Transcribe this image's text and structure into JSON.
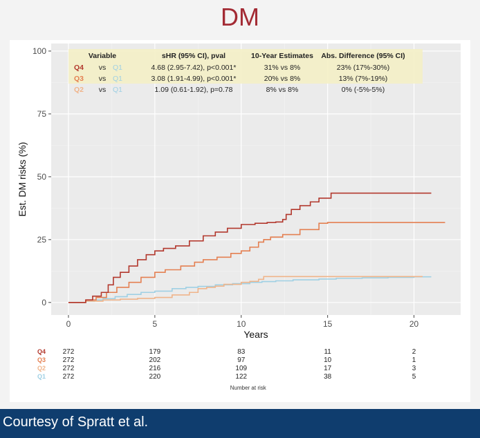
{
  "title": "DM",
  "footer": "Courtesy of Spratt et al.",
  "colors": {
    "title": "#a32b34",
    "Q4": "#b2372c",
    "Q3": "#e47f51",
    "Q2": "#f0b48a",
    "Q1": "#9fd0e4",
    "highlight": "#f4f0c6",
    "footer_bg": "#0f3d6e"
  },
  "table": {
    "headers": [
      "Variable",
      "sHR (95% CI), pval",
      "10-Year Estimates",
      "Abs. Difference (95% CI)"
    ],
    "rows": [
      {
        "group": "Q4",
        "vs": "vs",
        "ref": "Q1",
        "shr": "4.68 (2.95-7.42), p<0.001*",
        "est": "31% vs 8%",
        "diff": "23% (17%-30%)",
        "highlight": true
      },
      {
        "group": "Q3",
        "vs": "vs",
        "ref": "Q1",
        "shr": "3.08 (1.91-4.99), p<0.001*",
        "est": "20% vs 8%",
        "diff": "13% (7%-19%)",
        "highlight": false
      },
      {
        "group": "Q2",
        "vs": "vs",
        "ref": "Q1",
        "shr": "1.09 (0.61-1.92), p=0.78",
        "est": "8% vs 8%",
        "diff": "0% (-5%-5%)",
        "highlight": false
      }
    ]
  },
  "risk_table": {
    "label": "Number at risk",
    "times": [
      0,
      5,
      10,
      15,
      20
    ],
    "rows": [
      {
        "group": "Q4",
        "values": [
          272,
          179,
          83,
          11,
          2
        ]
      },
      {
        "group": "Q3",
        "values": [
          272,
          202,
          97,
          10,
          1
        ]
      },
      {
        "group": "Q2",
        "values": [
          272,
          216,
          109,
          17,
          3
        ]
      },
      {
        "group": "Q1",
        "values": [
          272,
          220,
          122,
          38,
          5
        ]
      }
    ]
  },
  "chart_data": {
    "type": "line",
    "step": true,
    "xlabel": "Years",
    "ylabel": "Est. DM risks (%)",
    "xlim": [
      -1,
      22.7
    ],
    "ylim": [
      -5,
      103
    ],
    "xticks": [
      0,
      5,
      10,
      15,
      20
    ],
    "yticks": [
      0,
      25,
      50,
      75,
      100
    ],
    "grid": true,
    "series": [
      {
        "name": "Q1",
        "color": "#9fd0e4",
        "x": [
          0,
          1,
          1.5,
          2,
          2.7,
          3.4,
          4.2,
          5,
          6,
          6.8,
          7.5,
          8.5,
          9.5,
          10.5,
          11.2,
          12,
          13,
          14.5,
          15.5,
          17,
          18.5,
          20,
          21
        ],
        "y": [
          0,
          0.4,
          1,
          1.5,
          2.3,
          3.2,
          4,
          4.5,
          5.5,
          6,
          6.4,
          7,
          7.5,
          8,
          8.3,
          8.6,
          9,
          9.3,
          9.6,
          9.8,
          10,
          10.2,
          10.2
        ]
      },
      {
        "name": "Q2",
        "color": "#f0b48a",
        "x": [
          0,
          1,
          2,
          3,
          4,
          5,
          6,
          7,
          7.5,
          8,
          8.5,
          9,
          10,
          10.5,
          11,
          11.3,
          14,
          15,
          17,
          19,
          20.5
        ],
        "y": [
          0,
          0.5,
          1,
          1.3,
          1.6,
          2,
          3,
          4,
          5.5,
          6,
          6.5,
          7.2,
          8,
          8.4,
          9.2,
          10.3,
          10.3,
          10.3,
          10.3,
          10.3,
          10.3
        ]
      },
      {
        "name": "Q3",
        "color": "#e47f51",
        "x": [
          0,
          1,
          1.6,
          2.2,
          2.8,
          3.5,
          4.2,
          5,
          5.6,
          6.5,
          7.3,
          7.8,
          8.6,
          9.4,
          10,
          10.5,
          11,
          11.3,
          11.7,
          12.4,
          13.4,
          14.5,
          15,
          15.7,
          16.5,
          18,
          20,
          21.8
        ],
        "y": [
          0,
          1,
          2,
          4,
          6,
          8,
          10,
          12,
          13,
          14.5,
          16,
          17,
          18,
          19.5,
          20.5,
          22,
          24,
          25,
          26,
          27,
          29,
          31.5,
          31.8,
          31.8,
          31.8,
          31.8,
          31.8,
          31.8
        ]
      },
      {
        "name": "Q4",
        "color": "#b2372c",
        "x": [
          0,
          1,
          1.4,
          1.9,
          2.3,
          2.6,
          3,
          3.5,
          4,
          4.5,
          5,
          5.5,
          6.2,
          7,
          7.8,
          8.5,
          9.2,
          10,
          10.8,
          11.5,
          12,
          12.4,
          12.6,
          12.9,
          13.4,
          14,
          14.5,
          15.2,
          16,
          17,
          19,
          21
        ],
        "y": [
          0,
          1,
          2.5,
          4,
          7,
          10,
          12,
          14.5,
          17,
          19,
          20.5,
          21.5,
          22.5,
          24.5,
          26.5,
          28,
          29.5,
          31,
          31.5,
          31.8,
          32,
          33,
          35,
          37,
          38.5,
          40,
          41.5,
          43.5,
          43.5,
          43.5,
          43.5,
          43.5
        ]
      }
    ]
  }
}
